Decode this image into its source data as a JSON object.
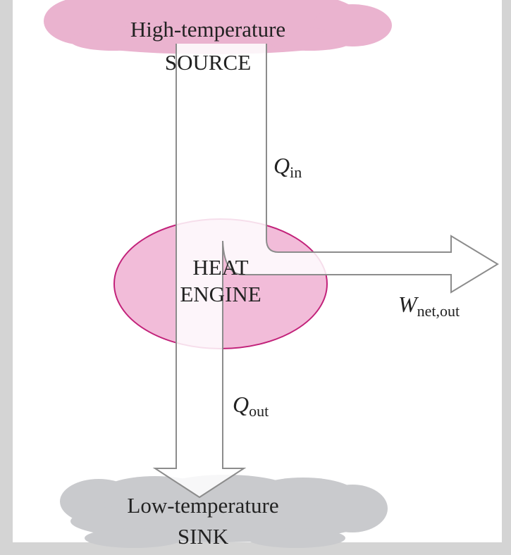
{
  "source": {
    "lines": [
      "High-temperature",
      "SOURCE"
    ]
  },
  "engine": {
    "lines": [
      "HEAT",
      "ENGINE"
    ]
  },
  "sink": {
    "lines": [
      "Low-temperature",
      "SINK"
    ]
  },
  "flows": [
    {
      "symbol": "Q",
      "subscript": "in"
    },
    {
      "symbol": "Q",
      "subscript": "out"
    },
    {
      "symbol": "W",
      "subscript": "net,out"
    }
  ]
}
